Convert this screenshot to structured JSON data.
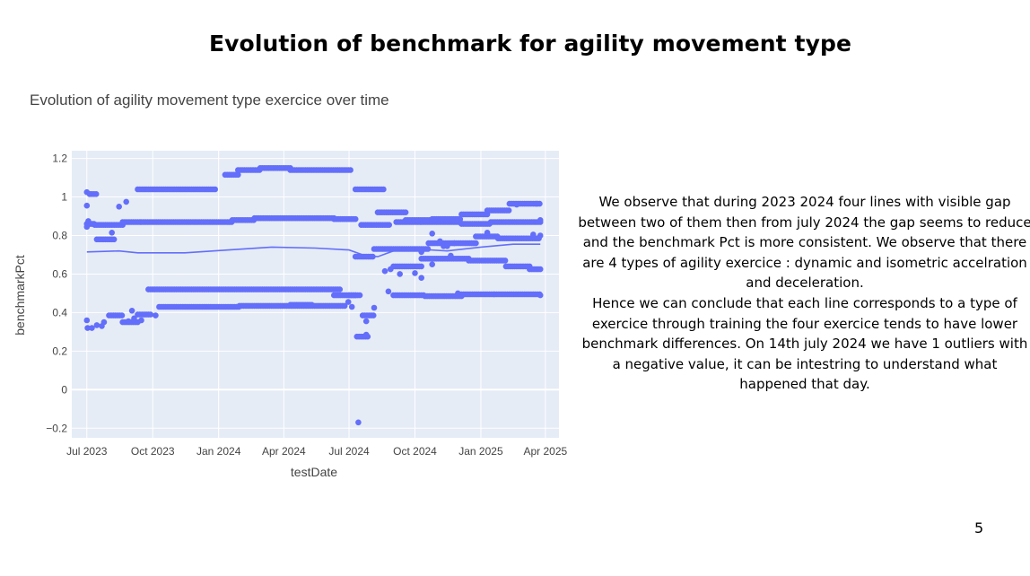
{
  "slide": {
    "title": "Evolution of benchmark for agility movement type",
    "commentary": [
      "We observe  that during 2023 2024 four lines with visible gap between two of them then from july 2024 the gap seems to reduce and the benchmark Pct is more consistent. We observe that there are 4 types of agility exercice : dynamic and isometric accelration and deceleration.",
      "Hence we can conclude that each line corresponds to a type of exercice  through training the four exercice tends to have lower benchmark differences. On 14th july 2024 we have 1 outliers with a negative value, it can be intestring to understand what happened that day."
    ],
    "page_number": "5"
  },
  "chart_data": {
    "type": "scatter",
    "title": "Evolution of agility movement type exercice over time",
    "xlabel": "testDate",
    "ylabel": "benchmarkPct",
    "xlim": [
      "2023-06-10",
      "2025-04-20"
    ],
    "ylim": [
      -0.25,
      1.24
    ],
    "xticks": [
      {
        "date": "2023-07-01",
        "label": "Jul 2023"
      },
      {
        "date": "2023-10-01",
        "label": "Oct 2023"
      },
      {
        "date": "2024-01-01",
        "label": "Jan 2024"
      },
      {
        "date": "2024-04-01",
        "label": "Apr 2024"
      },
      {
        "date": "2024-07-01",
        "label": "Jul 2024"
      },
      {
        "date": "2024-10-01",
        "label": "Oct 2024"
      },
      {
        "date": "2025-01-01",
        "label": "Jan 2025"
      },
      {
        "date": "2025-04-01",
        "label": "Apr 2025"
      }
    ],
    "yticks": [
      {
        "value": 1.2,
        "label": "1.2"
      },
      {
        "value": 1.0,
        "label": "1"
      },
      {
        "value": 0.8,
        "label": "0.8"
      },
      {
        "value": 0.6,
        "label": "0.6"
      },
      {
        "value": 0.4,
        "label": "0.4"
      },
      {
        "value": 0.2,
        "label": "0.2"
      },
      {
        "value": 0.0,
        "label": "0"
      },
      {
        "value": -0.2,
        "label": "−0.2"
      }
    ],
    "grid": true,
    "colors": {
      "marker": "#636efa",
      "plot_bg": "#e5ecf6",
      "grid": "#ffffff",
      "zeroline": "#ffffff"
    },
    "trend_line": [
      [
        "2023-07-01",
        0.715
      ],
      [
        "2023-08-15",
        0.72
      ],
      [
        "2023-09-10",
        0.71
      ],
      [
        "2023-11-15",
        0.71
      ],
      [
        "2024-01-15",
        0.725
      ],
      [
        "2024-03-15",
        0.74
      ],
      [
        "2024-05-15",
        0.735
      ],
      [
        "2024-07-01",
        0.725
      ],
      [
        "2024-07-20",
        0.7
      ],
      [
        "2024-08-10",
        0.69
      ],
      [
        "2024-09-01",
        0.72
      ],
      [
        "2024-10-01",
        0.73
      ],
      [
        "2024-11-15",
        0.72
      ],
      [
        "2025-01-01",
        0.74
      ],
      [
        "2025-02-15",
        0.755
      ],
      [
        "2025-03-25",
        0.755
      ]
    ],
    "segments": [
      {
        "from": "2023-07-01",
        "to": "2023-07-12",
        "y": 0.86,
        "step": 2
      },
      {
        "from": "2023-07-12",
        "to": "2023-08-20",
        "y": 0.855,
        "step": 3
      },
      {
        "from": "2023-08-20",
        "to": "2023-09-15",
        "y": 0.87,
        "step": 3
      },
      {
        "from": "2023-09-15",
        "to": "2024-01-20",
        "y": 0.87,
        "step": 3
      },
      {
        "from": "2024-01-20",
        "to": "2024-02-20",
        "y": 0.88,
        "step": 3
      },
      {
        "from": "2024-02-20",
        "to": "2024-06-10",
        "y": 0.89,
        "step": 3
      },
      {
        "from": "2024-06-10",
        "to": "2024-07-10",
        "y": 0.885,
        "step": 3
      },
      {
        "from": "2024-07-18",
        "to": "2024-08-28",
        "y": 0.855,
        "step": 3
      },
      {
        "from": "2024-09-05",
        "to": "2024-10-10",
        "y": 0.87,
        "step": 3
      },
      {
        "from": "2024-10-10",
        "to": "2024-12-05",
        "y": 0.87,
        "step": 3
      },
      {
        "from": "2024-12-05",
        "to": "2025-01-15",
        "y": 0.86,
        "step": 3
      },
      {
        "from": "2025-01-15",
        "to": "2025-03-25",
        "y": 0.87,
        "step": 3
      },
      {
        "from": "2023-07-05",
        "to": "2023-07-15",
        "y": 1.015,
        "step": 3
      },
      {
        "from": "2023-09-10",
        "to": "2023-12-28",
        "y": 1.04,
        "step": 3
      },
      {
        "from": "2024-01-10",
        "to": "2024-01-28",
        "y": 1.115,
        "step": 3
      },
      {
        "from": "2024-01-28",
        "to": "2024-02-28",
        "y": 1.14,
        "step": 3
      },
      {
        "from": "2024-02-28",
        "to": "2024-04-10",
        "y": 1.15,
        "step": 3
      },
      {
        "from": "2024-04-10",
        "to": "2024-07-05",
        "y": 1.14,
        "step": 3
      },
      {
        "from": "2024-07-10",
        "to": "2024-08-18",
        "y": 1.04,
        "step": 3
      },
      {
        "from": "2024-08-10",
        "to": "2024-09-18",
        "y": 0.92,
        "step": 3
      },
      {
        "from": "2024-09-18",
        "to": "2024-10-25",
        "y": 0.88,
        "step": 3
      },
      {
        "from": "2024-10-25",
        "to": "2024-12-05",
        "y": 0.885,
        "step": 3
      },
      {
        "from": "2024-12-05",
        "to": "2025-01-10",
        "y": 0.91,
        "step": 3
      },
      {
        "from": "2025-01-10",
        "to": "2025-02-10",
        "y": 0.93,
        "step": 3
      },
      {
        "from": "2025-02-10",
        "to": "2025-03-25",
        "y": 0.965,
        "step": 3
      },
      {
        "from": "2023-07-15",
        "to": "2023-08-10",
        "y": 0.78,
        "step": 3
      },
      {
        "from": "2024-07-10",
        "to": "2024-08-05",
        "y": 0.69,
        "step": 3
      },
      {
        "from": "2024-08-05",
        "to": "2024-10-20",
        "y": 0.73,
        "step": 3
      },
      {
        "from": "2024-10-20",
        "to": "2024-11-25",
        "y": 0.76,
        "step": 3
      },
      {
        "from": "2024-11-25",
        "to": "2024-12-25",
        "y": 0.76,
        "step": 3
      },
      {
        "from": "2024-12-25",
        "to": "2025-01-25",
        "y": 0.795,
        "step": 3
      },
      {
        "from": "2025-01-25",
        "to": "2025-03-25",
        "y": 0.785,
        "step": 3
      },
      {
        "from": "2024-09-01",
        "to": "2024-10-10",
        "y": 0.64,
        "step": 3
      },
      {
        "from": "2024-10-10",
        "to": "2024-12-15",
        "y": 0.68,
        "step": 3
      },
      {
        "from": "2024-12-15",
        "to": "2025-02-05",
        "y": 0.67,
        "step": 3
      },
      {
        "from": "2025-02-05",
        "to": "2025-03-10",
        "y": 0.64,
        "step": 3
      },
      {
        "from": "2025-03-10",
        "to": "2025-03-25",
        "y": 0.625,
        "step": 3
      },
      {
        "from": "2023-08-01",
        "to": "2023-08-20",
        "y": 0.385,
        "step": 3
      },
      {
        "from": "2023-08-20",
        "to": "2023-09-10",
        "y": 0.35,
        "step": 3
      },
      {
        "from": "2023-09-10",
        "to": "2023-09-28",
        "y": 0.39,
        "step": 3
      },
      {
        "from": "2023-09-25",
        "to": "2024-06-20",
        "y": 0.52,
        "step": 3
      },
      {
        "from": "2023-10-10",
        "to": "2024-01-30",
        "y": 0.43,
        "step": 3
      },
      {
        "from": "2024-01-30",
        "to": "2024-06-25",
        "y": 0.435,
        "step": 3
      },
      {
        "from": "2024-04-10",
        "to": "2024-05-10",
        "y": 0.44,
        "step": 3
      },
      {
        "from": "2024-06-10",
        "to": "2024-07-12",
        "y": 0.49,
        "step": 3
      },
      {
        "from": "2024-07-01",
        "to": "2024-07-18",
        "y": 0.49,
        "step": 3
      },
      {
        "from": "2024-07-20",
        "to": "2024-08-05",
        "y": 0.385,
        "step": 3
      },
      {
        "from": "2024-07-12",
        "to": "2024-07-28",
        "y": 0.275,
        "step": 3
      },
      {
        "from": "2024-09-01",
        "to": "2024-10-15",
        "y": 0.49,
        "step": 3
      },
      {
        "from": "2024-10-15",
        "to": "2024-12-05",
        "y": 0.485,
        "step": 3
      },
      {
        "from": "2024-12-05",
        "to": "2025-01-20",
        "y": 0.495,
        "step": 3
      },
      {
        "from": "2025-01-20",
        "to": "2025-03-25",
        "y": 0.495,
        "step": 3
      }
    ],
    "points": [
      [
        "2023-07-01",
        0.955
      ],
      [
        "2023-07-01",
        1.025
      ],
      [
        "2023-07-05",
        1.015
      ],
      [
        "2023-07-01",
        0.845
      ],
      [
        "2023-07-03",
        0.875
      ],
      [
        "2023-07-01",
        0.36
      ],
      [
        "2023-07-02",
        0.32
      ],
      [
        "2023-07-08",
        0.32
      ],
      [
        "2023-07-15",
        0.335
      ],
      [
        "2023-07-22",
        0.33
      ],
      [
        "2023-07-25",
        0.35
      ],
      [
        "2023-08-05",
        0.815
      ],
      [
        "2023-08-15",
        0.95
      ],
      [
        "2023-08-25",
        0.975
      ],
      [
        "2023-08-28",
        0.355
      ],
      [
        "2023-09-02",
        0.41
      ],
      [
        "2023-09-05",
        0.37
      ],
      [
        "2023-09-15",
        0.36
      ],
      [
        "2023-10-05",
        0.385
      ],
      [
        "2024-06-30",
        0.455
      ],
      [
        "2024-07-05",
        0.43
      ],
      [
        "2024-07-14",
        -0.17
      ],
      [
        "2024-07-25",
        0.285
      ],
      [
        "2024-07-25",
        0.355
      ],
      [
        "2024-08-05",
        0.425
      ],
      [
        "2024-08-25",
        0.51
      ],
      [
        "2024-08-20",
        0.615
      ],
      [
        "2024-08-28",
        0.625
      ],
      [
        "2024-09-10",
        0.6
      ],
      [
        "2024-10-01",
        0.605
      ],
      [
        "2024-10-10",
        0.58
      ],
      [
        "2024-10-10",
        0.715
      ],
      [
        "2024-10-25",
        0.81
      ],
      [
        "2024-11-05",
        0.77
      ],
      [
        "2024-11-10",
        0.745
      ],
      [
        "2024-11-15",
        0.745
      ],
      [
        "2024-10-25",
        0.65
      ],
      [
        "2024-11-20",
        0.695
      ],
      [
        "2025-02-20",
        0.96
      ],
      [
        "2025-03-15",
        0.805
      ],
      [
        "2025-03-20",
        0.965
      ],
      [
        "2025-03-25",
        0.88
      ],
      [
        "2025-03-25",
        0.8
      ],
      [
        "2025-03-25",
        0.49
      ],
      [
        "2024-11-30",
        0.5
      ],
      [
        "2025-01-10",
        0.815
      ]
    ]
  }
}
